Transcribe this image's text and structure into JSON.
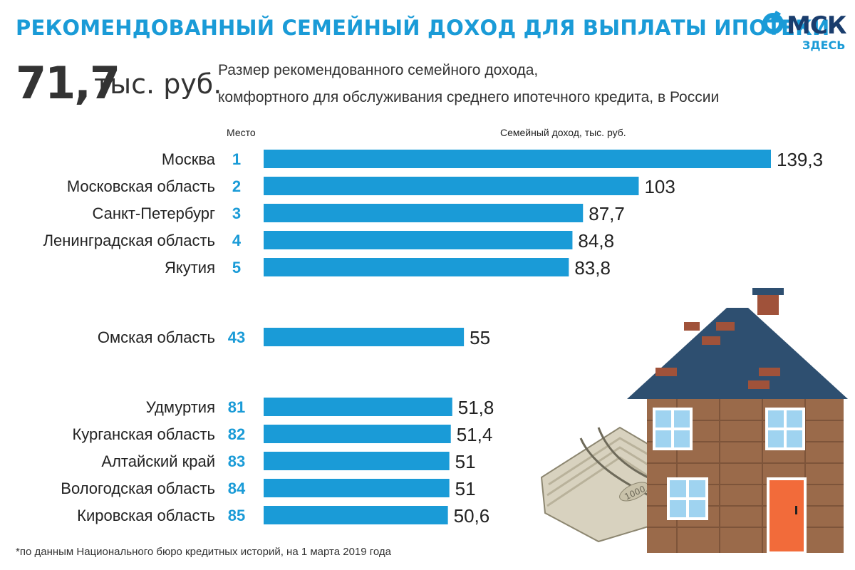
{
  "header": {
    "title": "РЕКОМЕНДОВАННЫЙ СЕМЕЙНЫЙ ДОХОД ДЛЯ ВЫПЛАТЫ ИПОТЕКИ",
    "logo_text": "МСК",
    "logo_sub": "ЗДЕСЬ"
  },
  "summary": {
    "value": "71,7",
    "unit": "тыс. руб.",
    "description_line1": "Размер рекомендованного семейного дохода,",
    "description_line2": "комфортного для обслуживания среднего ипотечного кредита, в России"
  },
  "column_headers": {
    "place": "Место",
    "income": "Семейный доход, тыс. руб."
  },
  "chart_data": {
    "type": "bar",
    "orientation": "horizontal",
    "title": "РЕКОМЕНДОВАННЫЙ СЕМЕЙНЫЙ ДОХОД ДЛЯ ВЫПЛАТЫ ИПОТЕКИ",
    "xlabel": "Семейный доход, тыс. руб.",
    "categories": [
      "Москва",
      "Московская область",
      "Санкт-Петербург",
      "Ленинградская область",
      "Якутия",
      "Омская область",
      "Удмуртия",
      "Курганская область",
      "Алтайский край",
      "Вологодская область",
      "Кировская область"
    ],
    "ranks": [
      "1",
      "2",
      "3",
      "4",
      "5",
      "43",
      "81",
      "82",
      "83",
      "84",
      "85"
    ],
    "values": [
      139.3,
      103,
      87.7,
      84.8,
      83.8,
      55,
      51.8,
      51.4,
      51,
      51,
      50.6
    ],
    "value_labels": [
      "139,3",
      "103",
      "87,7",
      "84,8",
      "83,8",
      "55",
      "51,8",
      "51,4",
      "51",
      "51",
      "50,6"
    ],
    "groups": [
      [
        0,
        1,
        2,
        3,
        4
      ],
      [
        5
      ],
      [
        6,
        7,
        8,
        9,
        10
      ]
    ],
    "xlim": [
      0,
      139.3
    ],
    "bar_color": "#1a9bd7",
    "rank_color": "#1a9bd7"
  },
  "illustration": {
    "note_label": "1000"
  },
  "footnote": "*по данным Национального бюро кредитных историй, на 1 марта 2019 года",
  "colors": {
    "accent": "#1a9bd7",
    "title": "#1a9bd7",
    "logo_dark": "#1a3d6d",
    "roof": "#2e4f70",
    "wall": "#9a6a4a",
    "door": "#f26b3a"
  }
}
